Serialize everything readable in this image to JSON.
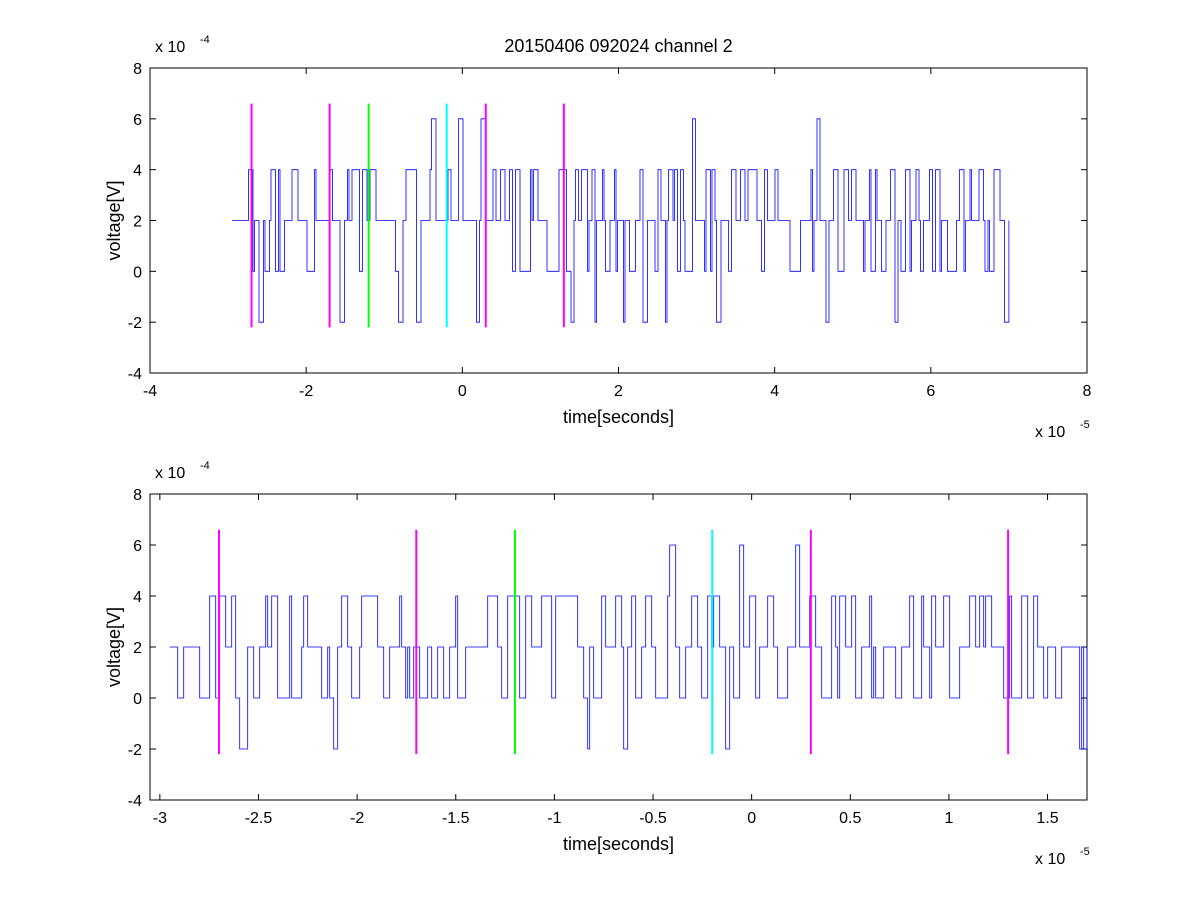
{
  "chart_data": [
    {
      "type": "line",
      "title": "20150406 092024 channel 2",
      "xlabel": "time[seconds]",
      "ylabel": "voltage[V]",
      "x_multiplier": {
        "base": "x 10",
        "exponent": "-5"
      },
      "y_multiplier": {
        "base": "x 10",
        "exponent": "-4"
      },
      "xlim": [
        -4,
        8
      ],
      "ylim": [
        -4,
        8
      ],
      "x_ticks": [
        -4,
        -2,
        0,
        2,
        4,
        6,
        8
      ],
      "x_tick_labels": [
        "-4",
        "-2",
        "0",
        "2",
        "4",
        "6",
        "8"
      ],
      "y_ticks": [
        -4,
        -2,
        0,
        2,
        4,
        6,
        8
      ],
      "y_tick_labels": [
        "-4",
        "-2",
        "0",
        "2",
        "4",
        "6",
        "8"
      ],
      "grid": false,
      "signal": {
        "color": "#0000ff",
        "x_start": -2.95,
        "x_end": 7.0,
        "levels": [
          0,
          2,
          4
        ],
        "dips": [
          [
            -2.62,
            -2
          ],
          [
            -2.62,
            -2
          ],
          [
            -1.6,
            -2
          ],
          [
            -0.85,
            -2
          ],
          [
            -0.62,
            -2
          ],
          [
            0.15,
            -2
          ],
          [
            1.35,
            -2
          ],
          [
            1.68,
            -2
          ],
          [
            2.05,
            -2
          ],
          [
            2.3,
            -2
          ],
          [
            2.55,
            -2
          ],
          [
            3.25,
            -2
          ],
          [
            4.65,
            -2
          ],
          [
            5.5,
            -2
          ],
          [
            6.9,
            -2
          ]
        ],
        "peaks": [
          [
            -0.42,
            6
          ],
          [
            -0.05,
            6
          ],
          [
            0.22,
            6
          ],
          [
            2.92,
            6
          ],
          [
            4.52,
            6
          ]
        ]
      },
      "markers": [
        {
          "x": -2.7,
          "y0": -2.2,
          "y1": 6.6,
          "color": "#ff00ff"
        },
        {
          "x": -1.7,
          "y0": -2.2,
          "y1": 6.6,
          "color": "#ff00ff"
        },
        {
          "x": -1.2,
          "y0": -2.2,
          "y1": 6.6,
          "color": "#00ff00"
        },
        {
          "x": -0.2,
          "y0": -2.2,
          "y1": 6.6,
          "color": "#00ffff"
        },
        {
          "x": 0.3,
          "y0": -2.2,
          "y1": 6.6,
          "color": "#ff00ff"
        },
        {
          "x": 1.3,
          "y0": -2.2,
          "y1": 6.6,
          "color": "#ff00ff"
        }
      ]
    },
    {
      "type": "line",
      "title": "",
      "xlabel": "time[seconds]",
      "ylabel": "voltage[V]",
      "x_multiplier": {
        "base": "x 10",
        "exponent": "-5"
      },
      "y_multiplier": {
        "base": "x 10",
        "exponent": "-4"
      },
      "xlim": [
        -3.05,
        1.7
      ],
      "ylim": [
        -4,
        8
      ],
      "x_ticks": [
        -3,
        -2.5,
        -2,
        -1.5,
        -1,
        -0.5,
        0,
        0.5,
        1,
        1.5
      ],
      "x_tick_labels": [
        "-3",
        "-2.5",
        "-2",
        "-1.5",
        "-1",
        "-0.5",
        "0",
        "0.5",
        "1",
        "1.5"
      ],
      "y_ticks": [
        -4,
        -2,
        0,
        2,
        4,
        6,
        8
      ],
      "y_tick_labels": [
        "-4",
        "-2",
        "0",
        "2",
        "4",
        "6",
        "8"
      ],
      "grid": false,
      "signal": {
        "color": "#0000ff",
        "x_start": -2.95,
        "x_end": 1.7,
        "levels": [
          0,
          2,
          4
        ],
        "dips": [
          [
            -2.6,
            -2
          ],
          [
            -2.58,
            -2
          ],
          [
            -2.12,
            -2
          ],
          [
            -0.85,
            -2
          ],
          [
            -0.65,
            -2
          ],
          [
            -0.15,
            -2
          ],
          [
            1.66,
            -2
          ],
          [
            1.68,
            -2
          ]
        ],
        "peaks": [
          [
            -0.42,
            6
          ],
          [
            -0.08,
            6
          ],
          [
            0.22,
            6
          ]
        ]
      },
      "markers": [
        {
          "x": -2.7,
          "y0": -2.2,
          "y1": 6.6,
          "color": "#ff00ff"
        },
        {
          "x": -1.7,
          "y0": -2.2,
          "y1": 6.6,
          "color": "#ff00ff"
        },
        {
          "x": -1.2,
          "y0": -2.2,
          "y1": 6.6,
          "color": "#00ff00"
        },
        {
          "x": -0.2,
          "y0": -2.2,
          "y1": 6.6,
          "color": "#00ffff"
        },
        {
          "x": 0.3,
          "y0": -2.2,
          "y1": 6.6,
          "color": "#ff00ff"
        },
        {
          "x": 1.3,
          "y0": -2.2,
          "y1": 6.6,
          "color": "#ff00ff"
        }
      ]
    }
  ]
}
